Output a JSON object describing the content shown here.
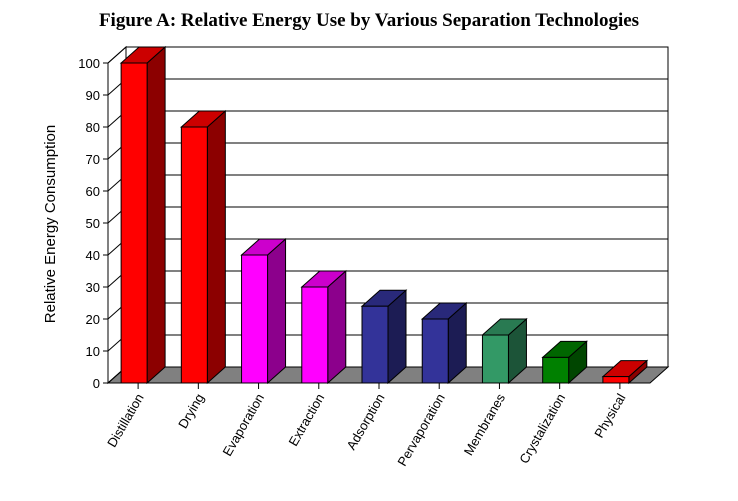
{
  "chart_data": {
    "type": "bar",
    "title": "Figure A:  Relative Energy Use by Various Separation Technologies",
    "xlabel": "",
    "ylabel": "Relative Energy Consumption",
    "ylim": [
      0,
      100
    ],
    "yticks": [
      0,
      10,
      20,
      30,
      40,
      50,
      60,
      70,
      80,
      90,
      100
    ],
    "grid": true,
    "style": "3d",
    "categories": [
      "Distillation",
      "Drying",
      "Evaporation",
      "Extraction",
      "Adsorption",
      "Pervaporation",
      "Membranes",
      "Crystalization",
      "Physical"
    ],
    "values": [
      100,
      80,
      40,
      30,
      24,
      20,
      15,
      8,
      2
    ],
    "colors": [
      "#ff0000",
      "#ff0000",
      "#ff00ff",
      "#ff00ff",
      "#333399",
      "#333399",
      "#339966",
      "#008000",
      "#ff0000"
    ]
  }
}
